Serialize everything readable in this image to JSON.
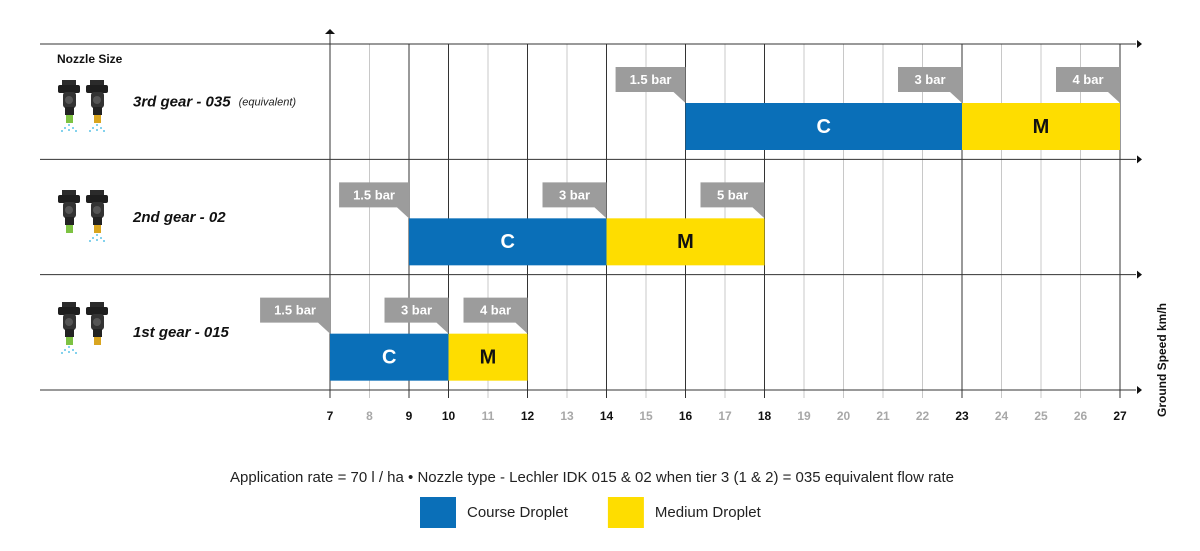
{
  "chart_data": {
    "type": "range",
    "row_header": "Nozzle Size",
    "xlabel": "Ground Speed km/h",
    "xlim": [
      7,
      27
    ],
    "xticks": [
      7,
      8,
      9,
      10,
      11,
      12,
      13,
      14,
      15,
      16,
      17,
      18,
      19,
      20,
      21,
      22,
      23,
      24,
      25,
      26,
      27
    ],
    "rows": [
      {
        "label": "3rd gear - 035",
        "note": "(equivalent)",
        "edges": [
          16,
          23,
          27
        ],
        "pressures": [
          "1.5 bar",
          "3 bar",
          "4 bar"
        ],
        "segment_labels": [
          "C",
          "M"
        ]
      },
      {
        "label": "2nd gear - 02",
        "edges": [
          9,
          14,
          18
        ],
        "pressures": [
          "1.5 bar",
          "3 bar",
          "5 bar"
        ],
        "segment_labels": [
          "C",
          "M"
        ]
      },
      {
        "label": "1st gear - 015",
        "edges": [
          7,
          10,
          12
        ],
        "pressures": [
          "1.5 bar",
          "3 bar",
          "4 bar"
        ],
        "segment_labels": [
          "C",
          "M"
        ]
      }
    ],
    "footnote": "Application rate = 70 l / ha  •  Nozzle type - Lechler IDK 015 & 02 when tier 3 (1 & 2) = 035 equivalent flow rate",
    "legend": [
      {
        "name": "Course Droplet",
        "color": "#0a6fb8"
      },
      {
        "name": "Medium Droplet",
        "color": "#fedd00"
      }
    ]
  }
}
